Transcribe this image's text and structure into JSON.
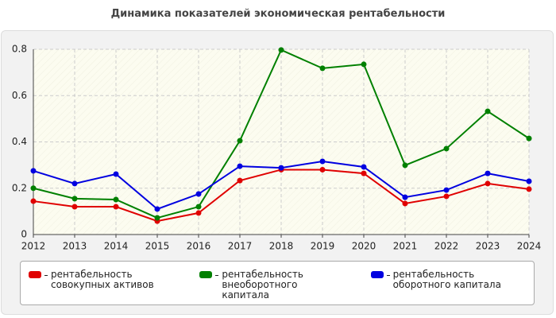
{
  "chart_data": {
    "type": "line",
    "title": "Динамика показателей экономическая рентабельности",
    "x": [
      2012,
      2013,
      2014,
      2015,
      2016,
      2017,
      2018,
      2019,
      2020,
      2021,
      2022,
      2023,
      2024
    ],
    "xlim": [
      2012,
      2024
    ],
    "xticks": [
      2012,
      2013,
      2014,
      2015,
      2016,
      2017,
      2018,
      2019,
      2020,
      2021,
      2022,
      2023,
      2024
    ],
    "ylim": [
      0,
      0.8
    ],
    "yticks": [
      0,
      0.2,
      0.4,
      0.6,
      0.8
    ],
    "grid": true,
    "series": [
      {
        "name": "рентабельность совокупных активов",
        "color": "#e00000",
        "values": [
          0.144,
          0.12,
          0.12,
          0.058,
          0.093,
          0.233,
          0.28,
          0.28,
          0.264,
          0.134,
          0.165,
          0.22,
          0.196
        ]
      },
      {
        "name": "рентабельность внеоборотного капитала",
        "color": "#008000",
        "values": [
          0.2,
          0.155,
          0.151,
          0.072,
          0.12,
          0.405,
          0.797,
          0.718,
          0.735,
          0.299,
          0.371,
          0.532,
          0.415
        ]
      },
      {
        "name": "рентабельность оборотного капитала",
        "color": "#0000e0",
        "values": [
          0.275,
          0.22,
          0.261,
          0.11,
          0.175,
          0.295,
          0.288,
          0.316,
          0.292,
          0.161,
          0.192,
          0.264,
          0.23
        ]
      }
    ]
  }
}
